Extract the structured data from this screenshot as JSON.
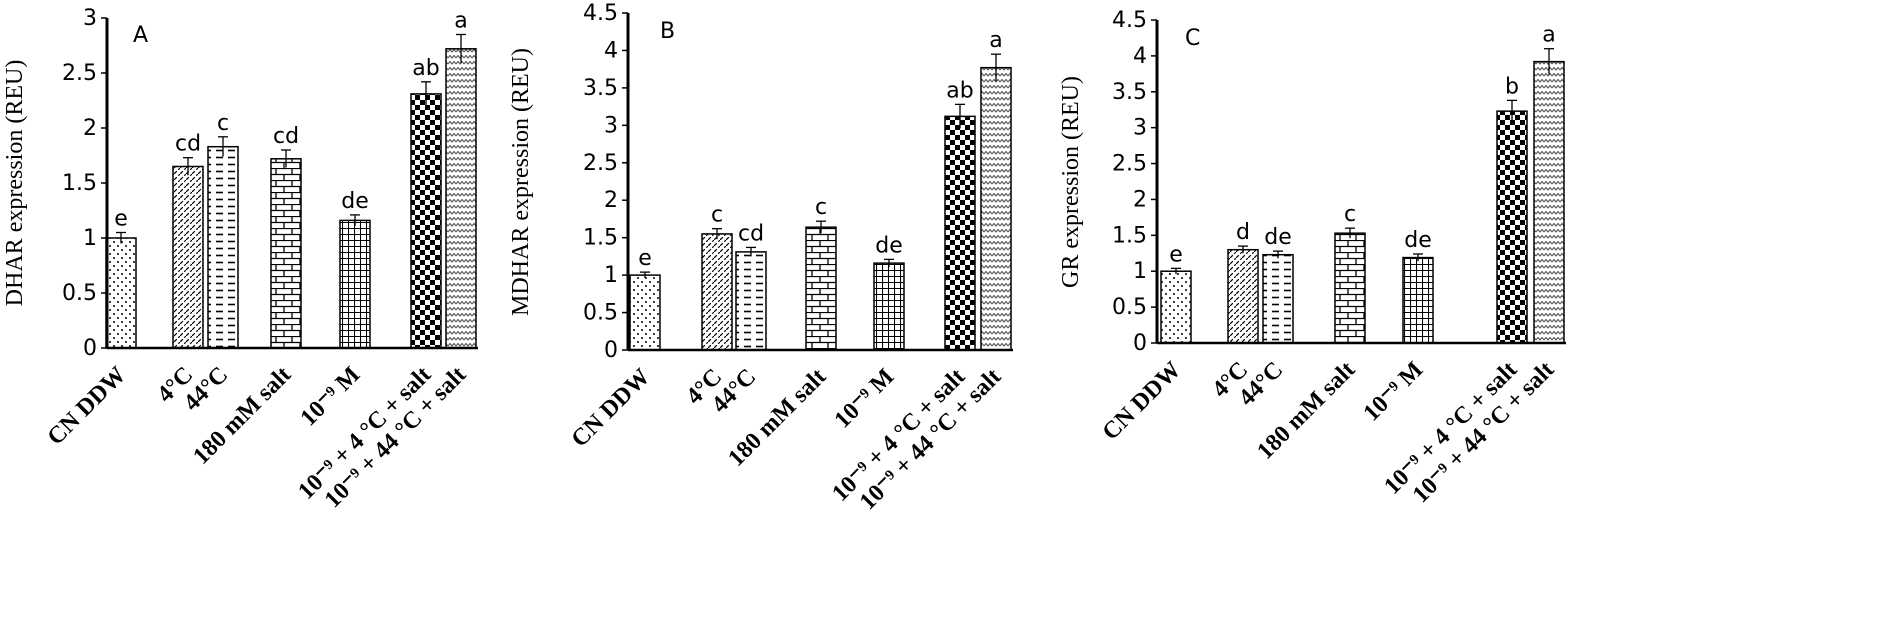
{
  "chart_data": [
    {
      "type": "bar",
      "panel_label": "A",
      "ylabel": "DHAR expression (REU)",
      "ylim": [
        0,
        3
      ],
      "yticks": [
        "0",
        "0.5",
        "1",
        "1.5",
        "2",
        "2.5",
        "3"
      ],
      "categories": [
        "CN DDW",
        "4°C",
        "44°C",
        "180 mM salt",
        "10⁻⁹ M",
        "10⁻⁹ + 4 °C + salt",
        "10⁻⁹ + 44 °C + salt"
      ],
      "values": [
        1.0,
        1.65,
        1.83,
        1.72,
        1.16,
        2.31,
        2.72
      ],
      "errors": [
        0.05,
        0.08,
        0.09,
        0.08,
        0.05,
        0.11,
        0.13
      ],
      "significance": [
        "e",
        "cd",
        "c",
        "cd",
        "de",
        "ab",
        "a"
      ]
    },
    {
      "type": "bar",
      "panel_label": "B",
      "ylabel": "MDHAR expression (REU)",
      "ylim": [
        0,
        4.5
      ],
      "yticks": [
        "0",
        "0.5",
        "1",
        "1.5",
        "2",
        "2.5",
        "3",
        "3.5",
        "4",
        "4.5"
      ],
      "categories": [
        "CN DDW",
        "4°C",
        "44°C",
        "180 mM salt",
        "10⁻⁹ M",
        "10⁻⁹ + 4 °C + salt",
        "10⁻⁹ + 44 °C + salt"
      ],
      "values": [
        1.0,
        1.55,
        1.31,
        1.64,
        1.16,
        3.12,
        3.77
      ],
      "errors": [
        0.04,
        0.07,
        0.06,
        0.08,
        0.05,
        0.16,
        0.18
      ],
      "significance": [
        "e",
        "c",
        "cd",
        "c",
        "de",
        "ab",
        "a"
      ]
    },
    {
      "type": "bar",
      "panel_label": "C",
      "ylabel": "GR expression (REU)",
      "ylim": [
        0,
        4.5
      ],
      "yticks": [
        "0",
        "0.5",
        "1",
        "1.5",
        "2",
        "2.5",
        "3",
        "3.5",
        "4",
        "4.5"
      ],
      "categories": [
        "CN DDW",
        "4°C",
        "44°C",
        "180 mM salt",
        "10⁻⁹ M",
        "10⁻⁹ + 4 °C + salt",
        "10⁻⁹ + 44 °C + salt"
      ],
      "values": [
        1.0,
        1.3,
        1.23,
        1.53,
        1.19,
        3.23,
        3.92
      ],
      "errors": [
        0.04,
        0.05,
        0.05,
        0.07,
        0.05,
        0.15,
        0.18
      ],
      "significance": [
        "e",
        "d",
        "de",
        "c",
        "de",
        "b",
        "a"
      ]
    }
  ],
  "colors": {
    "ink": "#000000",
    "background": "#ffffff"
  },
  "patterns": [
    "dots",
    "diagonal-dashes",
    "horizontal-dashes",
    "bricks",
    "grid",
    "checkerboard",
    "zigzag"
  ]
}
